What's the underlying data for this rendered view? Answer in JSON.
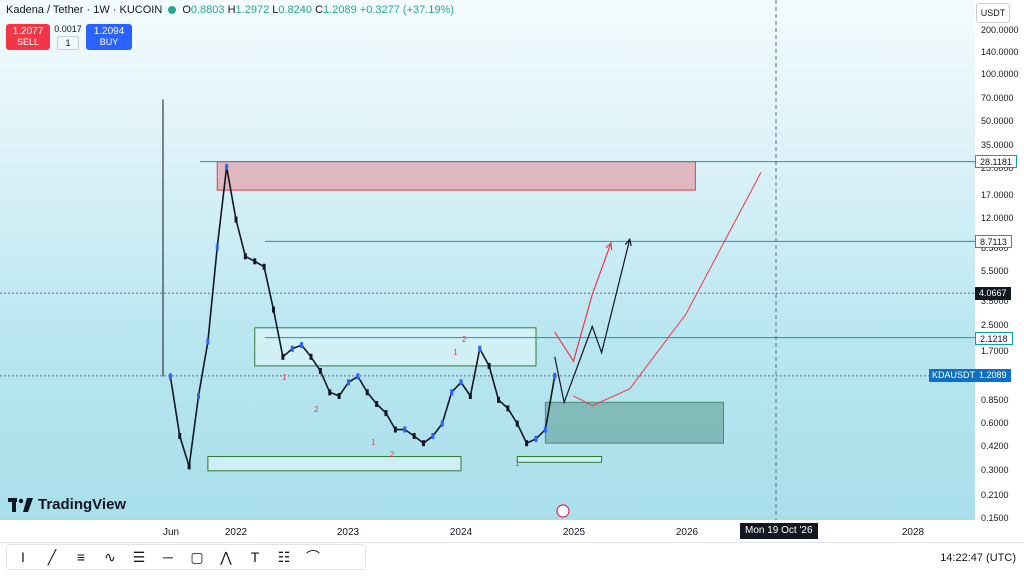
{
  "header": {
    "symbol_title": "Kadena / Tether · 1W · KUCOIN",
    "ohlc": {
      "open_label": "O",
      "open": "0.8803",
      "high_label": "H",
      "high": "1.2972",
      "low_label": "L",
      "low": "0.8240",
      "close_label": "C",
      "close": "1.2089",
      "change": "+0.3277 (+37.19%)"
    },
    "sell_price": "1.2077",
    "sell_label": "SELL",
    "spread": "0.0017",
    "qty": "1",
    "buy_price": "1.2094",
    "buy_label": "BUY",
    "currency": "USDT"
  },
  "price_axis": {
    "ticks": [
      "200.0000",
      "140.0000",
      "100.0000",
      "70.0000",
      "50.0000",
      "35.0000",
      "25.0000",
      "17.0000",
      "12.0000",
      "8.5000",
      "5.5000",
      "3.5000",
      "2.5000",
      "1.7000",
      "0.8500",
      "0.6000",
      "0.4200",
      "0.3000",
      "0.2100",
      "0.1500"
    ],
    "tags": [
      {
        "label": "28.1181"
      },
      {
        "label": "8.7113"
      },
      {
        "label": "4.0667"
      },
      {
        "label": "2.1218"
      },
      {
        "symbol": "KDAUSDT",
        "label": "1.2089"
      }
    ]
  },
  "time_axis": {
    "ticks": [
      "Jun",
      "2022",
      "2023",
      "2024",
      "2025",
      "2026",
      "2028"
    ],
    "crosshair_label": "Mon 19 Oct '26"
  },
  "annotations": [
    "1",
    "2",
    "1",
    "2",
    "1",
    "2",
    "1"
  ],
  "chart_data": {
    "type": "line",
    "scale": "log",
    "series": [
      {
        "x": [
          "2021-06",
          "2021-07",
          "2021-08",
          "2021-09",
          "2021-10",
          "2021-11",
          "2021-12",
          "2022-01",
          "2022-02",
          "2022-03",
          "2022-04",
          "2022-05",
          "2022-06",
          "2022-07",
          "2022-08",
          "2022-09",
          "2022-10",
          "2022-11",
          "2022-12",
          "2023-01",
          "2023-02",
          "2023-03",
          "2023-04",
          "2023-05",
          "2023-06",
          "2023-07",
          "2023-08",
          "2023-09",
          "2023-10",
          "2023-11",
          "2023-12",
          "2024-01",
          "2024-02",
          "2024-03",
          "2024-04",
          "2024-05",
          "2024-06",
          "2024-07",
          "2024-08",
          "2024-09",
          "2024-10",
          "2024-11"
        ],
        "y": [
          1.2,
          0.5,
          0.32,
          0.9,
          2.0,
          8.0,
          26.0,
          12.0,
          7.0,
          6.5,
          6.0,
          3.2,
          1.6,
          1.8,
          1.9,
          1.6,
          1.3,
          0.95,
          0.9,
          1.1,
          1.2,
          0.95,
          0.8,
          0.7,
          0.55,
          0.55,
          0.5,
          0.45,
          0.5,
          0.6,
          0.95,
          1.1,
          0.9,
          1.8,
          1.4,
          0.85,
          0.75,
          0.6,
          0.45,
          0.48,
          0.55,
          1.21
        ]
      }
    ],
    "projections": [
      {
        "color": "#131722",
        "x": [
          "2024-11",
          "2024-12",
          "2025-03",
          "2025-04",
          "2025-07"
        ],
        "y": [
          1.6,
          0.82,
          2.5,
          1.7,
          9.0
        ]
      },
      {
        "color": "#f23645",
        "x": [
          "2024-11",
          "2025-01",
          "2025-03",
          "2025-05"
        ],
        "y": [
          2.3,
          1.5,
          4.0,
          8.5
        ]
      }
    ],
    "curve": {
      "color": "#f23645",
      "x": [
        "2025-01",
        "2025-03",
        "2025-07",
        "2026-01",
        "2026-09"
      ],
      "y": [
        0.9,
        0.78,
        1.0,
        3.0,
        24.0
      ]
    },
    "zones": [
      {
        "color": "#f23645",
        "x0": "2021-11",
        "x1": "2026-02",
        "y0": 18.5,
        "y1": 28.1
      },
      {
        "color": "#4a8a7a",
        "x0": "2024-10",
        "x1": "2026-05",
        "y0": 0.45,
        "y1": 0.82
      },
      {
        "color": "#2e7d32",
        "x0": "2022-03",
        "x1": "2024-09",
        "y0": 1.4,
        "y1": 2.45
      },
      {
        "color": "#2e7d32",
        "x0": "2021-10",
        "x1": "2024-01",
        "y0": 0.3,
        "y1": 0.37
      },
      {
        "color": "#2e7d32",
        "x0": "2024-07",
        "x1": "2025-04",
        "y0": 0.34,
        "y1": 0.37
      }
    ],
    "levels": [
      28.1181,
      8.7113,
      4.0667,
      2.1218,
      1.2089
    ]
  },
  "toolbar": {
    "icons": [
      "cursor-icon",
      "trendline-icon",
      "fib-icon",
      "brush-icon",
      "pattern-icon",
      "horizontal-line-icon",
      "rectangle-icon",
      "zigzag-icon",
      "text-icon",
      "lines-icon",
      "curve-icon"
    ]
  },
  "footer": {
    "clock": "14:22:47 (UTC)",
    "watermark": "TradingView"
  }
}
